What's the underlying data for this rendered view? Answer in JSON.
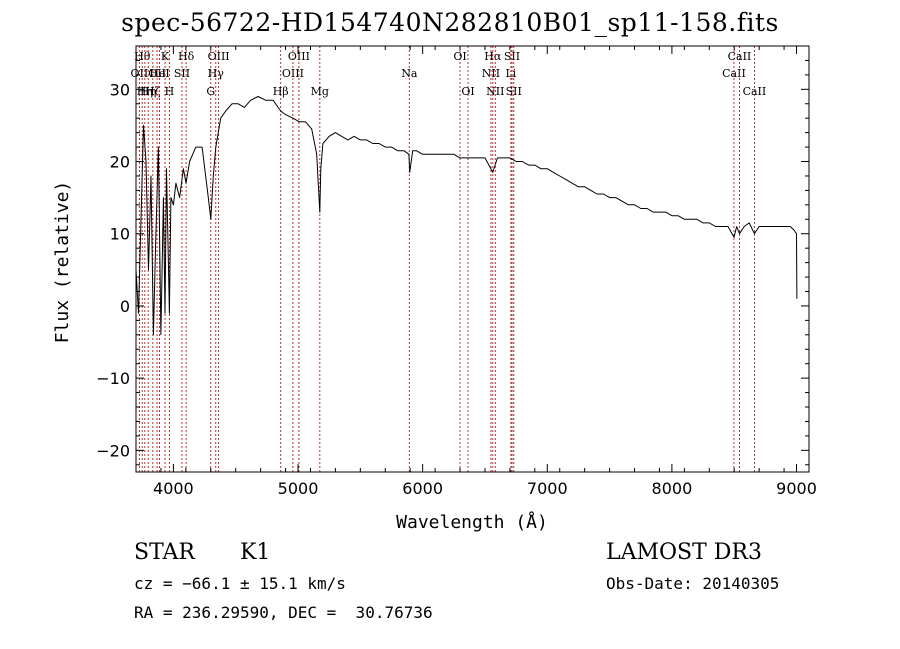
{
  "chart_data": {
    "type": "line",
    "title": "spec-56722-HD154740N282810B01_sp11-158.fits",
    "xlabel": "Wavelength (Å)",
    "ylabel": "Flux (relative)",
    "xlim": [
      3700,
      9100
    ],
    "ylim": [
      -23,
      36
    ],
    "xticks": [
      4000,
      5000,
      6000,
      7000,
      8000,
      9000
    ],
    "yticks": [
      -20,
      -10,
      0,
      10,
      20,
      30
    ],
    "series": [
      {
        "name": "flux",
        "x": [
          3700,
          3720,
          3740,
          3760,
          3780,
          3800,
          3820,
          3840,
          3860,
          3880,
          3900,
          3920,
          3933,
          3945,
          3968,
          3980,
          4000,
          4020,
          4050,
          4080,
          4101,
          4130,
          4180,
          4230,
          4280,
          4300,
          4320,
          4340,
          4380,
          4420,
          4470,
          4520,
          4570,
          4620,
          4680,
          4740,
          4800,
          4861,
          4900,
          4960,
          5010,
          5060,
          5110,
          5150,
          5175,
          5183,
          5200,
          5250,
          5300,
          5350,
          5400,
          5450,
          5500,
          5550,
          5600,
          5650,
          5700,
          5750,
          5800,
          5850,
          5890,
          5896,
          5920,
          5950,
          6000,
          6050,
          6100,
          6150,
          6200,
          6250,
          6300,
          6350,
          6400,
          6450,
          6500,
          6563,
          6600,
          6650,
          6700,
          6750,
          6800,
          6850,
          6900,
          6950,
          7000,
          7050,
          7100,
          7150,
          7200,
          7250,
          7300,
          7350,
          7400,
          7450,
          7500,
          7550,
          7600,
          7650,
          7700,
          7750,
          7800,
          7850,
          7900,
          7950,
          8000,
          8050,
          8100,
          8150,
          8200,
          8250,
          8300,
          8350,
          8400,
          8450,
          8498,
          8520,
          8542,
          8580,
          8620,
          8662,
          8700,
          8750,
          8800,
          8850,
          8900,
          8950,
          8980,
          9000,
          9003
        ],
        "y": [
          5,
          -1,
          12,
          25,
          20,
          5,
          18,
          -4,
          10,
          22,
          -4,
          15,
          -1,
          19,
          -1,
          15,
          14,
          17,
          15,
          19,
          17,
          20,
          22,
          22,
          15,
          12,
          18,
          22,
          26,
          27,
          28,
          28,
          27.5,
          28.5,
          29,
          28.5,
          28.5,
          27,
          26.5,
          26,
          25.5,
          25.5,
          24.5,
          21,
          13,
          19,
          22.5,
          23.5,
          24,
          23.5,
          23,
          23.5,
          23,
          23,
          22.5,
          22.5,
          22,
          22,
          21.5,
          21.5,
          21,
          18.5,
          21.5,
          21.5,
          21,
          21,
          21,
          21,
          21,
          21,
          20.5,
          20.5,
          20.5,
          20.5,
          20.5,
          18.5,
          20.5,
          20.5,
          20.5,
          20,
          20,
          19.5,
          19.5,
          19,
          19,
          18.5,
          18,
          17.5,
          17,
          16.5,
          16.5,
          16,
          15.5,
          15.5,
          15,
          15,
          14.5,
          14,
          14,
          13.5,
          13.5,
          13,
          13,
          13,
          12.5,
          12.5,
          12,
          12,
          12,
          11.5,
          11.5,
          11,
          11,
          11,
          9.5,
          11,
          10,
          11,
          11.5,
          10,
          11,
          11,
          11,
          11,
          11,
          11,
          10.5,
          10,
          1
        ]
      }
    ],
    "lines": [
      {
        "wl": 3727,
        "label": "OII",
        "row": 1
      },
      {
        "wl": 3750,
        "label": "Hθ",
        "row": 0
      },
      {
        "wl": 3771,
        "label": "Hη",
        "row": 2
      },
      {
        "wl": 3798,
        "label": "Hη",
        "row": 2
      },
      {
        "wl": 3835,
        "label": "Hζ",
        "row": 2
      },
      {
        "wl": 3869,
        "label": "OII",
        "row": 1
      },
      {
        "wl": 3889,
        "label": "HeI",
        "row": 1
      },
      {
        "wl": 3933,
        "label": "K",
        "row": 0
      },
      {
        "wl": 3968,
        "label": "H",
        "row": 2
      },
      {
        "wl": 4069,
        "label": "SII",
        "row": 1
      },
      {
        "wl": 4102,
        "label": "Hδ",
        "row": 0
      },
      {
        "wl": 4300,
        "label": "G",
        "row": 2
      },
      {
        "wl": 4340,
        "label": "Hγ",
        "row": 1
      },
      {
        "wl": 4363,
        "label": "OIII",
        "row": 0
      },
      {
        "wl": 4861,
        "label": "Hβ",
        "row": 2
      },
      {
        "wl": 4959,
        "label": "OIII",
        "row": 1
      },
      {
        "wl": 5007,
        "label": "OIII",
        "row": 0
      },
      {
        "wl": 5175,
        "label": "Mg",
        "row": 2
      },
      {
        "wl": 5893,
        "label": "Na",
        "row": 1
      },
      {
        "wl": 6300,
        "label": "OI",
        "row": 0
      },
      {
        "wl": 6364,
        "label": "OI",
        "row": 2
      },
      {
        "wl": 6548,
        "label": "NII",
        "row": 1
      },
      {
        "wl": 6563,
        "label": "Hα",
        "row": 0
      },
      {
        "wl": 6583,
        "label": "NII",
        "row": 2
      },
      {
        "wl": 6708,
        "label": "Li",
        "row": 1
      },
      {
        "wl": 6717,
        "label": "SII",
        "row": 0
      },
      {
        "wl": 6731,
        "label": "SII",
        "row": 2
      },
      {
        "wl": 8498,
        "label": "CaII",
        "row": 1
      },
      {
        "wl": 8542,
        "label": "CaII",
        "row": 0
      },
      {
        "wl": 8662,
        "label": "CaII",
        "row": 2
      }
    ]
  },
  "info": {
    "object_type": "STAR",
    "subclass": "K1",
    "survey": "LAMOST DR3",
    "cz": "cz = −66.1 ± 15.1 km/s",
    "obs_date": "Obs-Date: 20140305",
    "coords": "RA = 236.29590, DEC =  30.76736"
  }
}
